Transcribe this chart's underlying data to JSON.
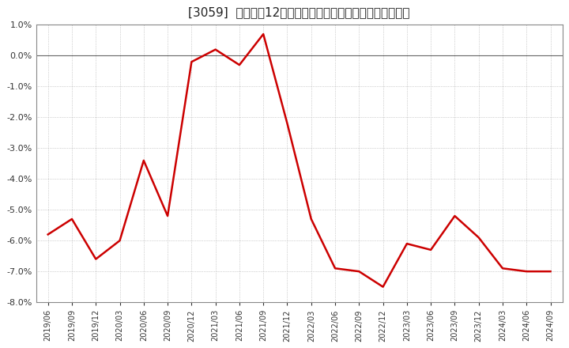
{
  "title": "[3059]  売上高の12か月移動合計の対前年同期増減率の推移",
  "line_color": "#cc0000",
  "background_color": "#ffffff",
  "grid_color": "#aaaaaa",
  "ylim": [
    -0.08,
    0.01
  ],
  "yticks": [
    -0.08,
    -0.07,
    -0.06,
    -0.05,
    -0.04,
    -0.03,
    -0.02,
    -0.01,
    0.0,
    0.01
  ],
  "dates": [
    "2019/06",
    "2019/09",
    "2019/12",
    "2020/03",
    "2020/06",
    "2020/09",
    "2020/12",
    "2021/03",
    "2021/06",
    "2021/09",
    "2021/12",
    "2022/03",
    "2022/06",
    "2022/09",
    "2022/12",
    "2023/03",
    "2023/06",
    "2023/09",
    "2023/12",
    "2024/03",
    "2024/06",
    "2024/09"
  ],
  "values": [
    -0.058,
    -0.053,
    -0.066,
    -0.06,
    -0.034,
    -0.052,
    -0.002,
    0.002,
    -0.003,
    0.007,
    -0.022,
    -0.053,
    -0.069,
    -0.07,
    -0.075,
    -0.061,
    -0.063,
    -0.052,
    -0.059,
    -0.069,
    -0.07,
    -0.07
  ],
  "figsize": [
    7.2,
    4.4
  ],
  "dpi": 100,
  "title_fontsize": 11,
  "tick_fontsize": 7,
  "ytick_fontsize": 8,
  "linewidth": 1.8
}
